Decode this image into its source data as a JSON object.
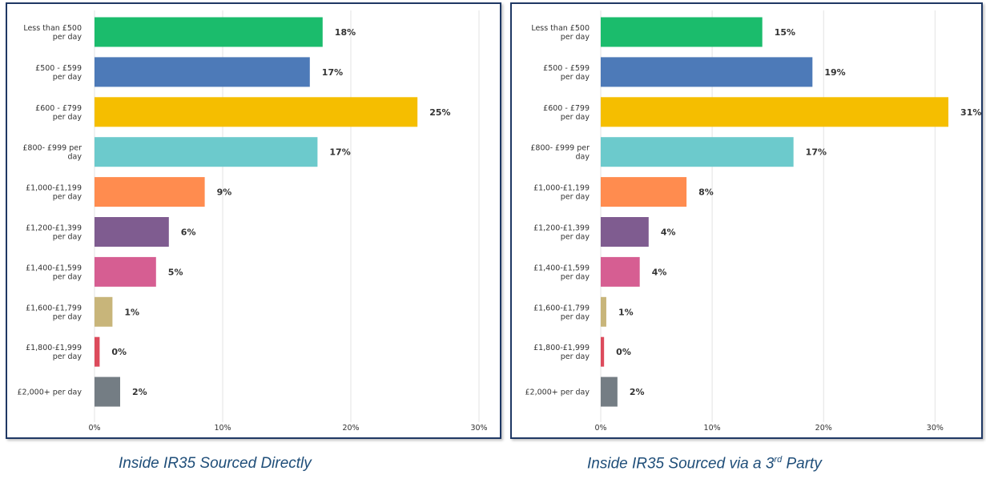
{
  "captions": [
    {
      "text": "Inside IR35 Sourced Directly"
    },
    {
      "pre": "Inside IR35 Sourced via a 3",
      "sup": "rd",
      "post": " Party"
    }
  ],
  "chart_data": [
    {
      "type": "bar",
      "orientation": "horizontal",
      "categories": [
        [
          "Less than £500",
          "per day"
        ],
        [
          "£500 - £599",
          "per day"
        ],
        [
          "£600 - £799",
          "per day"
        ],
        [
          "£800- £999 per",
          "day"
        ],
        [
          "£1,000-£1,199",
          "per day"
        ],
        [
          "£1,200-£1,399",
          "per day"
        ],
        [
          "£1,400-£1,599",
          "per day"
        ],
        [
          "£1,600-£1,799",
          "per day"
        ],
        [
          "£1,800-£1,999",
          "per day"
        ],
        [
          "£2,000+ per day"
        ]
      ],
      "values": [
        17.8,
        16.8,
        25.2,
        17.4,
        8.6,
        5.8,
        4.8,
        1.4,
        0.4,
        2.0
      ],
      "data_labels": [
        "18%",
        "17%",
        "25%",
        "17%",
        "9%",
        "6%",
        "5%",
        "1%",
        "0%",
        "2%"
      ],
      "colors": [
        "#1bbc6c",
        "#4d7ab8",
        "#f5be00",
        "#6ccacc",
        "#ff8c4f",
        "#7f5c90",
        "#d65e92",
        "#c8b57a",
        "#dc4b5c",
        "#747d84"
      ],
      "xlim": [
        0,
        30
      ],
      "xticks": [
        0,
        10,
        20,
        30
      ],
      "xtick_labels": [
        "0%",
        "10%",
        "20%",
        "30%"
      ],
      "grid": true
    },
    {
      "type": "bar",
      "orientation": "horizontal",
      "categories": [
        [
          "Less than £500",
          "per day"
        ],
        [
          "£500 - £599",
          "per day"
        ],
        [
          "£600 - £799",
          "per day"
        ],
        [
          "£800- £999 per",
          "day"
        ],
        [
          "£1,000-£1,199",
          "per day"
        ],
        [
          "£1,200-£1,399",
          "per day"
        ],
        [
          "£1,400-£1,599",
          "per day"
        ],
        [
          "£1,600-£1,799",
          "per day"
        ],
        [
          "£1,800-£1,999",
          "per day"
        ],
        [
          "£2,000+ per day"
        ]
      ],
      "values": [
        14.5,
        19.0,
        31.2,
        17.3,
        7.7,
        4.3,
        3.5,
        0.5,
        0.3,
        1.5
      ],
      "data_labels": [
        "15%",
        "19%",
        "31%",
        "17%",
        "8%",
        "4%",
        "4%",
        "1%",
        "0%",
        "2%"
      ],
      "colors": [
        "#1bbc6c",
        "#4d7ab8",
        "#f5be00",
        "#6ccacc",
        "#ff8c4f",
        "#7f5c90",
        "#d65e92",
        "#c8b57a",
        "#dc4b5c",
        "#747d84"
      ],
      "xlim": [
        0,
        34
      ],
      "xticks": [
        0,
        10,
        20,
        30
      ],
      "xtick_labels": [
        "0%",
        "10%",
        "20%",
        "30%"
      ],
      "grid": true
    }
  ]
}
